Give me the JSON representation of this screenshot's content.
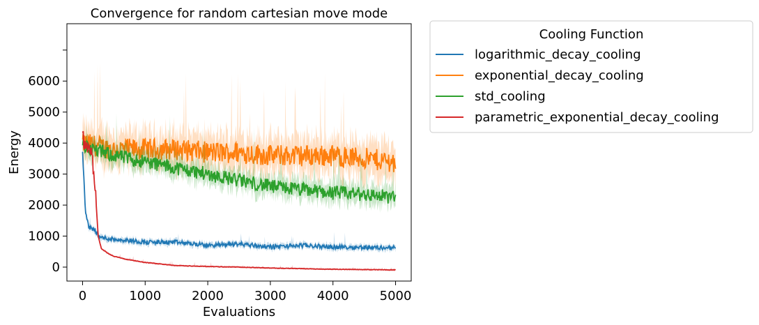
{
  "chart_data": {
    "type": "line",
    "title": "Convergence for random cartesian move mode",
    "xlabel": "Evaluations",
    "ylabel": "Energy",
    "xlim": [
      -250,
      5250
    ],
    "ylim": [
      -450,
      7850
    ],
    "xticks": [
      0,
      1000,
      2000,
      3000,
      4000,
      5000
    ],
    "yticks": [
      0,
      1000,
      2000,
      3000,
      4000,
      5000,
      6000
    ],
    "yticks_unlabeled": [
      7000
    ],
    "grid": false,
    "legend": {
      "title": "Cooling Function",
      "placement": "outside-top-right"
    },
    "series": [
      {
        "name": "logarithmic_decay_cooling",
        "color": "#1f77b4",
        "points": [
          [
            0,
            3700
          ],
          [
            50,
            1700
          ],
          [
            100,
            1300
          ],
          [
            200,
            1200
          ],
          [
            250,
            1000
          ],
          [
            300,
            950
          ],
          [
            500,
            900
          ],
          [
            800,
            850
          ],
          [
            1000,
            800
          ],
          [
            1500,
            800
          ],
          [
            2000,
            700
          ],
          [
            2500,
            750
          ],
          [
            3000,
            650
          ],
          [
            3500,
            700
          ],
          [
            4000,
            650
          ],
          [
            4500,
            640
          ],
          [
            5000,
            620
          ]
        ],
        "band_halfwidth": 90,
        "noise": 70
      },
      {
        "name": "exponential_decay_cooling",
        "color": "#ff7f0e",
        "points": [
          [
            0,
            4000
          ],
          [
            500,
            3800
          ],
          [
            1000,
            3800
          ],
          [
            1500,
            3800
          ],
          [
            2000,
            3700
          ],
          [
            2500,
            3700
          ],
          [
            3000,
            3600
          ],
          [
            3500,
            3600
          ],
          [
            4000,
            3600
          ],
          [
            4500,
            3500
          ],
          [
            5000,
            3400
          ]
        ],
        "band_halfwidth": 550,
        "noise": 350
      },
      {
        "name": "std_cooling",
        "color": "#2ca02c",
        "points": [
          [
            0,
            3900
          ],
          [
            500,
            3600
          ],
          [
            1000,
            3400
          ],
          [
            1500,
            3200
          ],
          [
            2000,
            3000
          ],
          [
            2500,
            2800
          ],
          [
            3000,
            2600
          ],
          [
            3500,
            2500
          ],
          [
            4000,
            2400
          ],
          [
            4500,
            2350
          ],
          [
            5000,
            2250
          ]
        ],
        "band_halfwidth": 300,
        "noise": 230
      },
      {
        "name": "parametric_exponential_decay_cooling",
        "color": "#d62728",
        "points": [
          [
            0,
            4200
          ],
          [
            100,
            3700
          ],
          [
            150,
            3600
          ],
          [
            200,
            2600
          ],
          [
            250,
            1000
          ],
          [
            300,
            600
          ],
          [
            400,
            450
          ],
          [
            500,
            350
          ],
          [
            700,
            250
          ],
          [
            1000,
            150
          ],
          [
            1500,
            50
          ],
          [
            2000,
            20
          ],
          [
            2500,
            0
          ],
          [
            3000,
            -30
          ],
          [
            3500,
            -50
          ],
          [
            4000,
            -70
          ],
          [
            4500,
            -80
          ],
          [
            5000,
            -90
          ]
        ],
        "band_halfwidth": 25,
        "noise": 8
      }
    ]
  }
}
